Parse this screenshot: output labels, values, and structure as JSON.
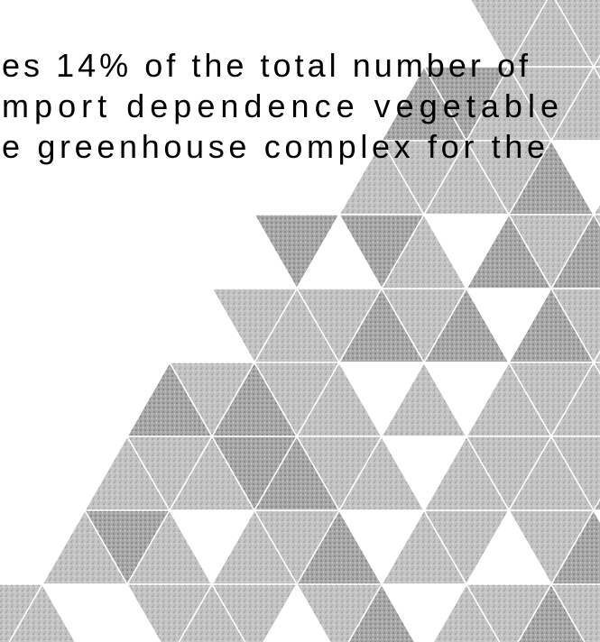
{
  "text": {
    "lines": [
      "es 14% of the total number of",
      "mport dependence vegetable",
      "e greenhouse complex for the"
    ]
  }
}
